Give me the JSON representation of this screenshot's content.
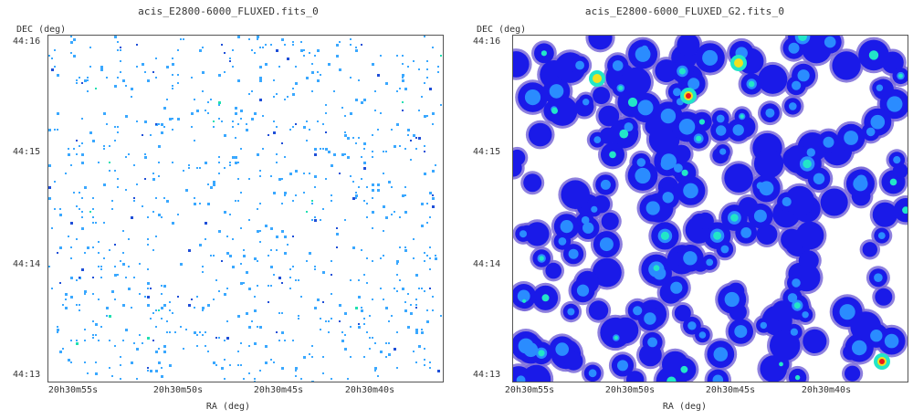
{
  "chart_data": [
    {
      "type": "heatmap",
      "title": "acis_E2800-6000_FLUXED.fits_0",
      "xlabel": "RA (deg)",
      "ylabel": "DEC (deg)",
      "x_ticks": [
        "20h30m55s",
        "20h30m50s",
        "20h30m45s",
        "20h30m40s"
      ],
      "y_ticks": [
        "44:16",
        "44:15",
        "44:14",
        "44:13"
      ],
      "rendering": "sparse individual photon counts, mostly light blue pixels",
      "colors": {
        "low": "#3aa8ff",
        "mid": "#1f4fd8",
        "high": "#20e0b0"
      }
    },
    {
      "type": "heatmap",
      "title": "acis_E2800-6000_FLUXED_G2.fits_0",
      "xlabel": "RA (deg)",
      "ylabel": "DEC (deg)",
      "x_ticks": [
        "20h30m55s",
        "20h30m50s",
        "20h30m45s",
        "20h30m40s"
      ],
      "y_ticks": [
        "44:16",
        "44:15",
        "44:14",
        "44:13"
      ],
      "rendering": "gaussian-smoothed counts with blue-to-red colormap",
      "colors": {
        "edge": "#7a6ad8",
        "low": "#1a1ae8",
        "mid": "#2a8cff",
        "high": "#22e6c8",
        "peak": "#e81a1a"
      }
    }
  ]
}
